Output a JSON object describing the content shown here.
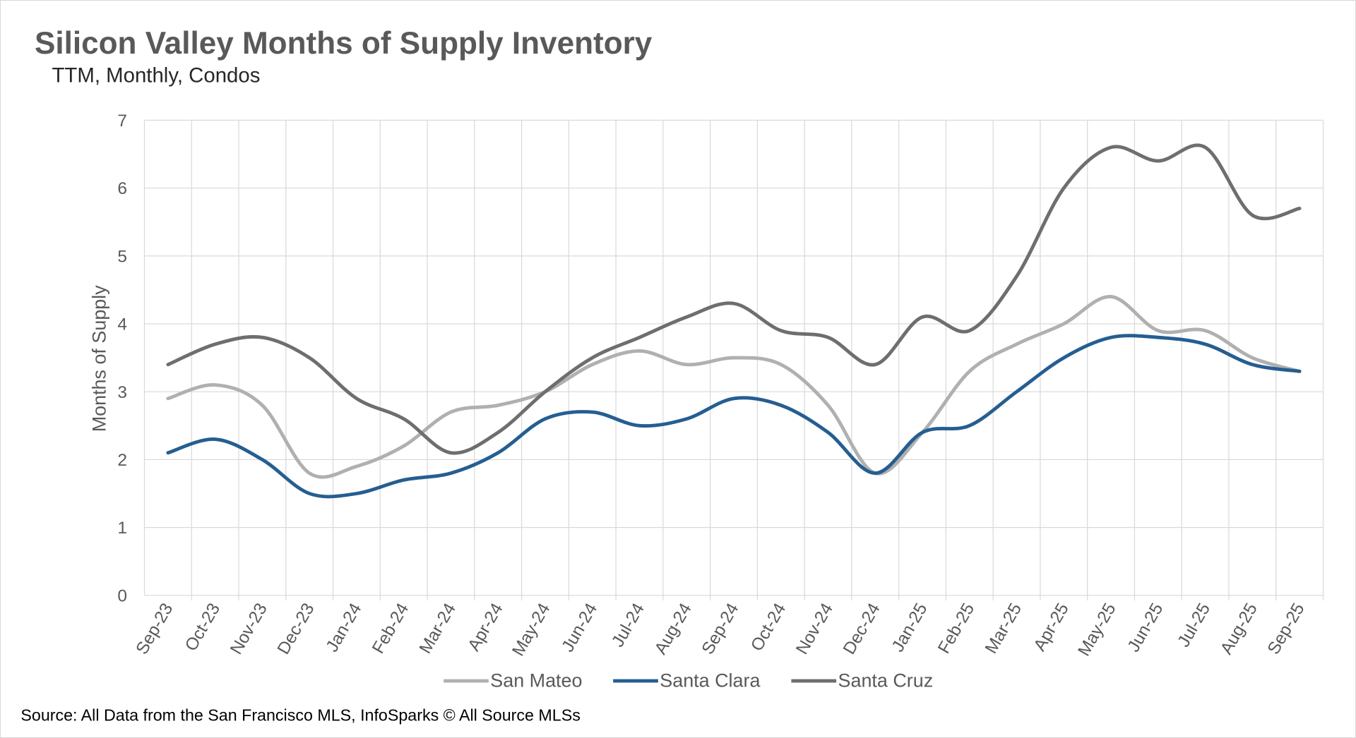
{
  "chart_data": {
    "type": "line",
    "title": "Silicon Valley Months of Supply Inventory",
    "subtitle": "TTM, Monthly, Condos",
    "ylabel": "Months of Supply",
    "xlabel": "",
    "ylim": [
      0,
      7
    ],
    "yticks": [
      "0",
      "1",
      "2",
      "3",
      "4",
      "5",
      "6",
      "7"
    ],
    "grid": true,
    "legend_position": "bottom",
    "categories": [
      "Sep-23",
      "Oct-23",
      "Nov-23",
      "Dec-23",
      "Jan-24",
      "Feb-24",
      "Mar-24",
      "Apr-24",
      "May-24",
      "Jun-24",
      "Jul-24",
      "Aug-24",
      "Sep-24",
      "Oct-24",
      "Nov-24",
      "Dec-24",
      "Jan-25",
      "Feb-25",
      "Mar-25",
      "Apr-25",
      "May-25",
      "Jun-25",
      "Jul-25",
      "Aug-25",
      "Sep-25"
    ],
    "series": [
      {
        "name": "San Mateo",
        "color": "#b0b0b0",
        "values": [
          2.9,
          3.1,
          2.8,
          1.8,
          1.9,
          2.2,
          2.7,
          2.8,
          3.0,
          3.4,
          3.6,
          3.4,
          3.5,
          3.4,
          2.8,
          1.8,
          2.4,
          3.3,
          3.7,
          4.0,
          4.4,
          3.9,
          3.9,
          3.5,
          3.3
        ]
      },
      {
        "name": "Santa Clara",
        "color": "#255e91",
        "values": [
          2.1,
          2.3,
          2.0,
          1.5,
          1.5,
          1.7,
          1.8,
          2.1,
          2.6,
          2.7,
          2.5,
          2.6,
          2.9,
          2.8,
          2.4,
          1.8,
          2.4,
          2.5,
          3.0,
          3.5,
          3.8,
          3.8,
          3.7,
          3.4,
          3.3
        ]
      },
      {
        "name": "Santa Cruz",
        "color": "#6e6e6e",
        "values": [
          3.4,
          3.7,
          3.8,
          3.5,
          2.9,
          2.6,
          2.1,
          2.4,
          3.0,
          3.5,
          3.8,
          4.1,
          4.3,
          3.9,
          3.8,
          3.4,
          4.1,
          3.9,
          4.7,
          6.0,
          6.6,
          6.4,
          6.6,
          5.6,
          5.7
        ]
      }
    ],
    "source": "Source: All Data from the San Francisco MLS, InfoSparks © All Source MLSs"
  }
}
